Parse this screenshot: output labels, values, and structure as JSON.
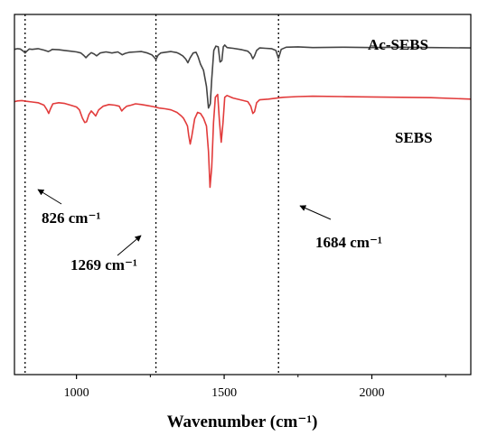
{
  "chart_data": {
    "type": "line",
    "title": "",
    "xlabel": "Wavenumber (cm⁻¹)",
    "ylabel": "",
    "xlim": [
      790,
      2335
    ],
    "ylim": [
      0,
      1
    ],
    "grid": false,
    "legend": "none",
    "x_ticks": [
      1000,
      1500,
      2000
    ],
    "x_tick_labels": [
      "1000",
      "1500",
      "2000"
    ],
    "reference_lines": [
      826,
      1269,
      1684
    ],
    "series": [
      {
        "name": "Ac-SEBS",
        "color": "#444444",
        "x": [
          790,
          800,
          810,
          820,
          826,
          832,
          840,
          850,
          870,
          890,
          905,
          912,
          918,
          940,
          960,
          980,
          1000,
          1015,
          1025,
          1032,
          1040,
          1050,
          1060,
          1068,
          1080,
          1100,
          1120,
          1140,
          1155,
          1165,
          1180,
          1200,
          1220,
          1240,
          1255,
          1262,
          1269,
          1276,
          1285,
          1300,
          1320,
          1340,
          1350,
          1360,
          1370,
          1377,
          1385,
          1395,
          1405,
          1412,
          1420,
          1430,
          1440,
          1447,
          1453,
          1458,
          1465,
          1472,
          1480,
          1486,
          1492,
          1497,
          1502,
          1510,
          1530,
          1560,
          1580,
          1590,
          1597,
          1603,
          1610,
          1620,
          1640,
          1660,
          1675,
          1684,
          1693,
          1710,
          1750,
          1800,
          1900,
          2000,
          2100,
          2200,
          2335
        ],
        "y": [
          0.903,
          0.905,
          0.904,
          0.898,
          0.893,
          0.898,
          0.904,
          0.903,
          0.905,
          0.901,
          0.897,
          0.9,
          0.903,
          0.902,
          0.9,
          0.898,
          0.896,
          0.893,
          0.886,
          0.88,
          0.887,
          0.894,
          0.89,
          0.885,
          0.893,
          0.896,
          0.893,
          0.896,
          0.888,
          0.892,
          0.895,
          0.896,
          0.897,
          0.893,
          0.888,
          0.882,
          0.875,
          0.887,
          0.893,
          0.895,
          0.897,
          0.894,
          0.89,
          0.885,
          0.876,
          0.866,
          0.88,
          0.893,
          0.895,
          0.882,
          0.862,
          0.845,
          0.8,
          0.74,
          0.752,
          0.82,
          0.9,
          0.912,
          0.91,
          0.868,
          0.872,
          0.91,
          0.915,
          0.908,
          0.906,
          0.902,
          0.898,
          0.89,
          0.877,
          0.885,
          0.9,
          0.907,
          0.906,
          0.905,
          0.9,
          0.878,
          0.903,
          0.909,
          0.91,
          0.908,
          0.909,
          0.908,
          0.909,
          0.908,
          0.907
        ]
      },
      {
        "name": "SEBS",
        "color": "#e23b3b",
        "x": [
          790,
          800,
          815,
          830,
          850,
          870,
          890,
          900,
          906,
          912,
          920,
          940,
          960,
          980,
          1000,
          1010,
          1020,
          1028,
          1034,
          1042,
          1050,
          1058,
          1065,
          1075,
          1090,
          1110,
          1130,
          1145,
          1153,
          1160,
          1170,
          1185,
          1200,
          1220,
          1240,
          1260,
          1280,
          1300,
          1320,
          1340,
          1355,
          1362,
          1370,
          1376,
          1380,
          1385,
          1390,
          1400,
          1410,
          1420,
          1430,
          1440,
          1447,
          1452,
          1458,
          1464,
          1470,
          1478,
          1484,
          1490,
          1496,
          1502,
          1510,
          1530,
          1560,
          1580,
          1590,
          1597,
          1603,
          1610,
          1620,
          1650,
          1680,
          1700,
          1750,
          1800,
          1900,
          2000,
          2100,
          2200,
          2335
        ],
        "y": [
          0.758,
          0.76,
          0.761,
          0.759,
          0.757,
          0.755,
          0.748,
          0.735,
          0.725,
          0.738,
          0.752,
          0.755,
          0.753,
          0.748,
          0.743,
          0.735,
          0.712,
          0.7,
          0.702,
          0.722,
          0.732,
          0.725,
          0.718,
          0.735,
          0.745,
          0.75,
          0.748,
          0.745,
          0.732,
          0.738,
          0.745,
          0.748,
          0.752,
          0.75,
          0.747,
          0.744,
          0.74,
          0.738,
          0.735,
          0.728,
          0.718,
          0.712,
          0.7,
          0.69,
          0.665,
          0.64,
          0.66,
          0.71,
          0.728,
          0.725,
          0.712,
          0.69,
          0.62,
          0.52,
          0.575,
          0.7,
          0.77,
          0.778,
          0.705,
          0.645,
          0.7,
          0.77,
          0.775,
          0.768,
          0.762,
          0.758,
          0.745,
          0.725,
          0.73,
          0.755,
          0.763,
          0.765,
          0.768,
          0.77,
          0.772,
          0.773,
          0.772,
          0.771,
          0.77,
          0.769,
          0.765
        ]
      }
    ],
    "annotations": [
      {
        "text": "826 cm⁻¹"
      },
      {
        "text": "1269 cm⁻¹"
      },
      {
        "text": "1684 cm⁻¹"
      }
    ]
  }
}
